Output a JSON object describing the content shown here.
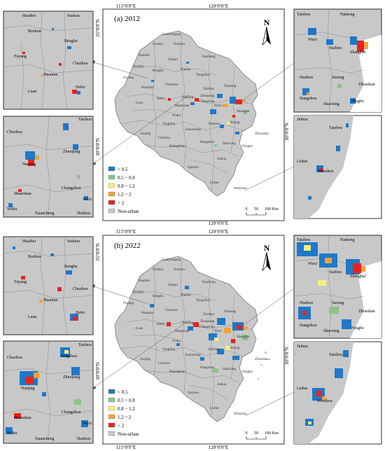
{
  "panels": [
    {
      "id": "a",
      "label": "(a) 2012",
      "lon_top": [
        "115°0'0\"E",
        "120°0'0\"E"
      ],
      "lon_bottom": [
        "120°0'0\"E"
      ],
      "lat_left": [
        "35°0'0\"N",
        "30°0'0\"N"
      ],
      "lat_right": [
        "30°0'0\"N"
      ],
      "inset_tl_labels": [
        "Huaibei",
        "Suzhou",
        "Bozhou",
        "Bengbu",
        "Fuyang",
        "Huainan",
        "Chuzhou",
        "Luan",
        "Hefei"
      ],
      "inset_bl_labels": [
        "Taizhou",
        "Chuzhou",
        "Zhenjiang",
        "Nanjing",
        "Maanshan",
        "Changzhou",
        "Wuxi",
        "Wuhu",
        "Xuancheng",
        "Huzhou"
      ],
      "inset_tr_labels": [
        "Taizhou",
        "Nantong",
        "Wuxi",
        "Suzhou",
        "Shanghai",
        "Huzhou",
        "Jiaxing",
        "Zhoushan",
        "Hangzhou",
        "Shaoxing",
        "Ningbo"
      ],
      "inset_br_labels": [
        "Jinhua",
        "Taizhou",
        "Lishui",
        "Wenzhou"
      ]
    },
    {
      "id": "b",
      "label": "(b) 2022",
      "lon_top": [
        "115°0'0\"E",
        "120°0'0\"E"
      ],
      "lon_bottom": [
        "115°0'0\"E",
        "120°0'0\"E"
      ],
      "lat_left": [
        "35°0'0\"N",
        "30°0'0\"N"
      ],
      "lat_right": [
        "30°0'0\"N"
      ],
      "inset_tl_labels": [
        "Huaibei",
        "Suzhou",
        "Bozhou",
        "Bengbu",
        "Fuyang",
        "Huainan",
        "Chuzhou",
        "Luan",
        "Hefei"
      ],
      "inset_bl_labels": [
        "Taizhou",
        "Yangzhou",
        "Chuzhou",
        "Zhenjiang",
        "Nanjing",
        "Maanshan",
        "Changzhou",
        "Wuxi",
        "Wuhu",
        "Xuancheng",
        "Huzhou"
      ],
      "inset_tr_labels": [
        "Taizhou",
        "Nantong",
        "Wuxi",
        "Suzhou",
        "Shanghai",
        "Huzhou",
        "Jiaxing",
        "Zhoushan",
        "Hangzhou",
        "Shaoxing",
        "Ningbo"
      ],
      "inset_br_labels": [
        "Jinhua",
        "Taizhou",
        "Lishui",
        "Wenzhou"
      ]
    }
  ],
  "city_labels": [
    "Lianyungang",
    "Suzhou",
    "Xuzhou",
    "Huaibei",
    "Suqian",
    "Yancheng",
    "Bozhou",
    "Bengbu",
    "Huaian",
    "Fuyang",
    "Huainan",
    "Chuzhou",
    "Yangzhou",
    "Nantong",
    "Taizhou",
    "Zhenjiang",
    "Luan",
    "Hefei",
    "Nanjing",
    "Changzhou",
    "Wuxi",
    "Maanshan",
    "Wuhu",
    "Shanghai",
    "Jiaxing",
    "Tongling",
    "Huzhou",
    "Chizhou",
    "Xuancheng",
    "Anqing",
    "Huangshan",
    "Hangzhou",
    "Shaoxing",
    "Zhoushan",
    "Ningbo",
    "Quzhou",
    "Jinhua",
    "Lishui",
    "Wenzhou"
  ],
  "north_arrow": "N",
  "scale": {
    "labels": [
      "0",
      "50",
      "100 Km"
    ]
  },
  "legend": [
    {
      "label": "< 0.5",
      "color": "#1f78c8"
    },
    {
      "label": "0.5 ~ 0.8",
      "color": "#8cc28a"
    },
    {
      "label": "0.8 ~ 1.2",
      "color": "#f6f07a"
    },
    {
      "label": "1.2 ~ 2",
      "color": "#f6a13a"
    },
    {
      "label": "> 2",
      "color": "#e8231f"
    },
    {
      "label": "Non-urban",
      "color": "#c8c8c8"
    }
  ],
  "colors": {
    "land": "#c8c8c8",
    "boundary": "#8a8a8a",
    "water": "#ffffff",
    "frame": "#000000"
  }
}
